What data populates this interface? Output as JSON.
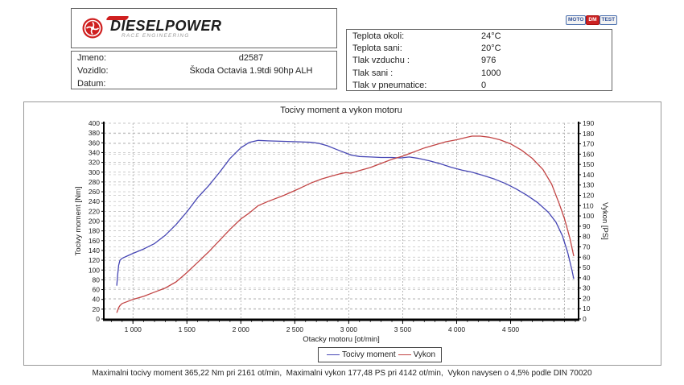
{
  "logo": {
    "brand": "DIESELPOWER",
    "sub": "RACE ENGINEERING"
  },
  "badge": {
    "part1": "MOTO",
    "part2": "DM",
    "part3": "TEST"
  },
  "info_left": {
    "rows": [
      {
        "label": "Jmeno:",
        "value": "d2587"
      },
      {
        "label": "Vozidlo:",
        "value": "Škoda Octavia 1.9tdi 90hp ALH"
      },
      {
        "label": "Datum:",
        "value": ""
      }
    ]
  },
  "info_right": {
    "rows": [
      {
        "label": "Teplota okoli:",
        "value": "24°C"
      },
      {
        "label": "Teplota sani:",
        "value": "20°C"
      },
      {
        "label": "Tlak vzduchu :",
        "value": "976"
      },
      {
        "label": "Tlak sani :",
        "value": "1000"
      },
      {
        "label": "Tlak v pneumatice:",
        "value": "0"
      }
    ]
  },
  "chart_data": {
    "type": "line",
    "title": "Tocivy moment a vykon motoru",
    "xlabel": "Otacky motoru [ot/min]",
    "xlim": [
      730,
      5130
    ],
    "x_ticks": [
      1000,
      1500,
      2000,
      2500,
      3000,
      3500,
      4000,
      4500
    ],
    "x_tick_labels": [
      "1 000",
      "1 500",
      "2 000",
      "2 500",
      "3 000",
      "3 500",
      "4 000",
      "4 500"
    ],
    "x_grid_extra": [
      5000
    ],
    "y_left": {
      "label": "Tocivy moment [Nm]",
      "min": 0,
      "max": 400,
      "step": 20
    },
    "y_right": {
      "label": "Vykon [PS]",
      "min": 0,
      "max": 190,
      "step": 10
    },
    "grid": true,
    "legend_position": "bottom",
    "series": [
      {
        "name": "Tocivy moment",
        "axis": "left",
        "color": "#4646b4",
        "units": "Nm",
        "points": [
          [
            850,
            68
          ],
          [
            858,
            90
          ],
          [
            868,
            110
          ],
          [
            880,
            120
          ],
          [
            900,
            124
          ],
          [
            950,
            129
          ],
          [
            1000,
            134
          ],
          [
            1100,
            143
          ],
          [
            1200,
            154
          ],
          [
            1300,
            171
          ],
          [
            1400,
            193
          ],
          [
            1500,
            219
          ],
          [
            1600,
            248
          ],
          [
            1700,
            272
          ],
          [
            1800,
            299
          ],
          [
            1900,
            328
          ],
          [
            2000,
            350
          ],
          [
            2080,
            361
          ],
          [
            2161,
            365
          ],
          [
            2250,
            364
          ],
          [
            2400,
            363
          ],
          [
            2550,
            362
          ],
          [
            2650,
            361
          ],
          [
            2720,
            359
          ],
          [
            2800,
            354
          ],
          [
            2880,
            347
          ],
          [
            2950,
            341
          ],
          [
            3020,
            335
          ],
          [
            3100,
            332
          ],
          [
            3200,
            331
          ],
          [
            3300,
            330
          ],
          [
            3400,
            330
          ],
          [
            3480,
            329
          ],
          [
            3560,
            331
          ],
          [
            3650,
            328
          ],
          [
            3750,
            323
          ],
          [
            3850,
            317
          ],
          [
            3950,
            310
          ],
          [
            4050,
            304
          ],
          [
            4142,
            300
          ],
          [
            4250,
            293
          ],
          [
            4350,
            286
          ],
          [
            4450,
            277
          ],
          [
            4550,
            266
          ],
          [
            4650,
            253
          ],
          [
            4750,
            238
          ],
          [
            4850,
            218
          ],
          [
            4920,
            198
          ],
          [
            4980,
            170
          ],
          [
            5030,
            135
          ],
          [
            5070,
            98
          ],
          [
            5085,
            82
          ]
        ]
      },
      {
        "name": "Vykon",
        "axis": "right",
        "color": "#c24444",
        "units": "PS",
        "points": [
          [
            850,
            6
          ],
          [
            868,
            11
          ],
          [
            880,
            13
          ],
          [
            900,
            15
          ],
          [
            950,
            17
          ],
          [
            1000,
            19
          ],
          [
            1100,
            22
          ],
          [
            1200,
            26
          ],
          [
            1300,
            30
          ],
          [
            1400,
            36
          ],
          [
            1500,
            45
          ],
          [
            1600,
            55
          ],
          [
            1700,
            65
          ],
          [
            1800,
            76
          ],
          [
            1900,
            87
          ],
          [
            2000,
            97
          ],
          [
            2080,
            103
          ],
          [
            2161,
            110
          ],
          [
            2250,
            114
          ],
          [
            2400,
            120
          ],
          [
            2550,
            127
          ],
          [
            2650,
            132
          ],
          [
            2750,
            136
          ],
          [
            2850,
            139
          ],
          [
            2920,
            141
          ],
          [
            2970,
            142
          ],
          [
            3020,
            141.5
          ],
          [
            3100,
            144
          ],
          [
            3200,
            147
          ],
          [
            3300,
            151
          ],
          [
            3400,
            155
          ],
          [
            3500,
            158
          ],
          [
            3600,
            162
          ],
          [
            3700,
            166
          ],
          [
            3800,
            169
          ],
          [
            3900,
            172
          ],
          [
            4000,
            174
          ],
          [
            4100,
            176.5
          ],
          [
            4142,
            177.5
          ],
          [
            4220,
            177.5
          ],
          [
            4300,
            176.5
          ],
          [
            4400,
            174
          ],
          [
            4500,
            170
          ],
          [
            4600,
            164
          ],
          [
            4700,
            156
          ],
          [
            4800,
            145
          ],
          [
            4880,
            131
          ],
          [
            4950,
            112
          ],
          [
            5000,
            97
          ],
          [
            5050,
            78
          ],
          [
            5085,
            61
          ]
        ]
      }
    ],
    "annotations": {
      "max_torque": "365,22 Nm pri 2161 ot/min",
      "max_power": "177,48 PS pri 4142 ot/min"
    }
  },
  "footer": {
    "summary": "Maximalni tocivy moment 365,22 Nm pri 2161 ot/min,  Maximalni vykon 177,48 PS pri 4142 ot/min,  Vykon navysen o 4,5% podle DIN 70020"
  }
}
